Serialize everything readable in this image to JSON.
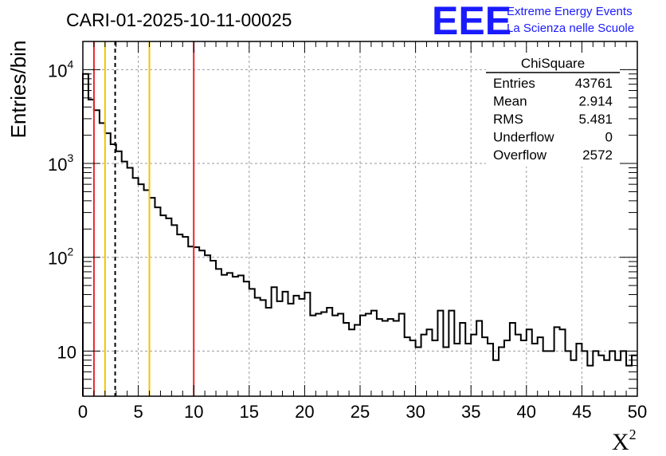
{
  "header": {
    "title": "CARI-01-2025-10-11-00025",
    "logo": "EEE",
    "logo_line1": "Extreme Energy Events",
    "logo_line2": "La Scienza nelle Scuole"
  },
  "chart_data": {
    "type": "histogram",
    "title": "CARI-01-2025-10-11-00025",
    "xlabel": "X",
    "xlabel_sup": "2",
    "ylabel": "Entries/bin",
    "yscale": "log",
    "xlim": [
      0,
      50
    ],
    "ylim": [
      3.3,
      20000
    ],
    "bin_width": 0.5,
    "grid": true,
    "x_ticks": [
      "0",
      "5",
      "10",
      "15",
      "20",
      "25",
      "30",
      "35",
      "40",
      "45",
      "50"
    ],
    "y_ticks": [
      {
        "value": 10,
        "label": "10",
        "sup": ""
      },
      {
        "value": 100,
        "label": "10",
        "sup": "2"
      },
      {
        "value": 1000,
        "label": "10",
        "sup": "3"
      },
      {
        "value": 10000,
        "label": "10",
        "sup": "4"
      }
    ],
    "values": [
      9000,
      4800,
      3700,
      2700,
      2100,
      1600,
      1350,
      1050,
      900,
      700,
      600,
      520,
      430,
      340,
      280,
      260,
      220,
      175,
      165,
      130,
      128,
      118,
      105,
      92,
      75,
      65,
      68,
      62,
      64,
      55,
      46,
      37,
      35,
      29,
      48,
      34,
      43,
      32,
      39,
      36,
      42,
      24,
      25,
      26,
      29,
      24,
      25,
      20,
      17,
      19,
      24,
      25,
      27,
      22,
      21,
      22,
      21,
      25,
      14,
      13,
      11,
      15,
      17,
      13,
      27,
      11,
      27,
      12,
      20,
      12,
      15,
      21,
      14,
      12,
      8,
      11,
      13,
      20,
      15,
      13,
      17,
      12,
      14,
      10,
      10,
      18,
      17,
      10,
      8,
      12,
      10,
      7,
      10,
      9,
      8,
      10,
      8,
      10,
      7,
      9
    ],
    "vertical_lines": [
      {
        "x": 1,
        "color": "#e8262b",
        "style": "solid"
      },
      {
        "x": 2,
        "color": "#f5c400",
        "style": "solid"
      },
      {
        "x": 2.914,
        "color": "#000000",
        "style": "dashed"
      },
      {
        "x": 6,
        "color": "#f5c400",
        "style": "solid"
      },
      {
        "x": 10,
        "color": "#e8262b",
        "style": "solid"
      }
    ]
  },
  "stats_box": {
    "name": "ChiSquare",
    "rows": [
      {
        "label": "Entries",
        "value": "43761"
      },
      {
        "label": "Mean",
        "value": "2.914"
      },
      {
        "label": "RMS",
        "value": "5.481"
      },
      {
        "label": "Underflow",
        "value": "0"
      },
      {
        "label": "Overflow",
        "value": "2572"
      }
    ]
  }
}
